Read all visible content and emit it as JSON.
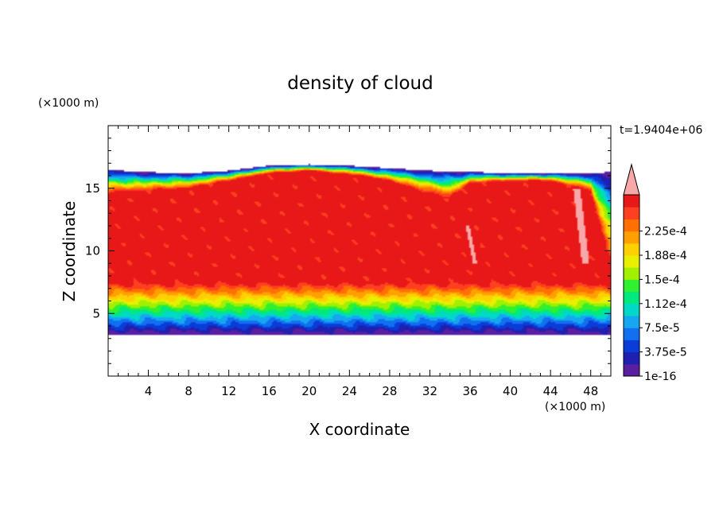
{
  "chart_data": {
    "type": "heatmap",
    "title": "density of cloud",
    "xlabel": "X coordinate",
    "ylabel": "Z coordinate",
    "x_unit": "(×1000 m)",
    "y_unit": "(×1000 m)",
    "time_label": "t=1.9404e+06",
    "xlim": [
      0,
      50
    ],
    "ylim": [
      0,
      20
    ],
    "x_ticks": [
      4,
      8,
      12,
      16,
      20,
      24,
      28,
      32,
      36,
      40,
      44,
      48
    ],
    "y_ticks": [
      5,
      10,
      15
    ],
    "colorbar": {
      "levels": [
        "1e-16",
        "3.75e-5",
        "7.5e-5",
        "1.12e-4",
        "1.5e-4",
        "1.88e-4",
        "2.25e-4"
      ],
      "colors": [
        "#5a1ea0",
        "#2020b0",
        "#0a3cd8",
        "#1070f0",
        "#15a8f0",
        "#00d8c8",
        "#00e880",
        "#30f030",
        "#a0f000",
        "#e8f000",
        "#ffd000",
        "#ffa000",
        "#ff7000",
        "#ff4020",
        "#e81818",
        "#f8a8a8"
      ],
      "extend": "max"
    },
    "field": {
      "cloud_base": 3.3,
      "cloud_top_profile": [
        [
          0,
          16.5
        ],
        [
          3,
          16.3
        ],
        [
          8,
          16.2
        ],
        [
          12,
          16.4
        ],
        [
          16,
          16.8
        ],
        [
          20,
          16.9
        ],
        [
          24,
          16.8
        ],
        [
          28,
          16.6
        ],
        [
          32,
          16.4
        ],
        [
          36,
          16.3
        ],
        [
          40,
          16.2
        ],
        [
          44,
          16.2
        ],
        [
          48,
          16.2
        ],
        [
          50,
          16.3
        ]
      ],
      "inner_top_profile": [
        [
          0,
          14.6
        ],
        [
          4,
          14.8
        ],
        [
          8,
          15.0
        ],
        [
          12,
          15.6
        ],
        [
          16,
          16.2
        ],
        [
          20,
          16.4
        ],
        [
          24,
          16.1
        ],
        [
          28,
          15.6
        ],
        [
          32,
          14.6
        ],
        [
          34,
          14.2
        ],
        [
          36,
          15.4
        ],
        [
          40,
          15.6
        ],
        [
          44,
          15.6
        ],
        [
          48,
          14.8
        ],
        [
          50,
          9.0
        ]
      ],
      "core_bottom": 7.5,
      "core_max": 0.000235
    }
  }
}
